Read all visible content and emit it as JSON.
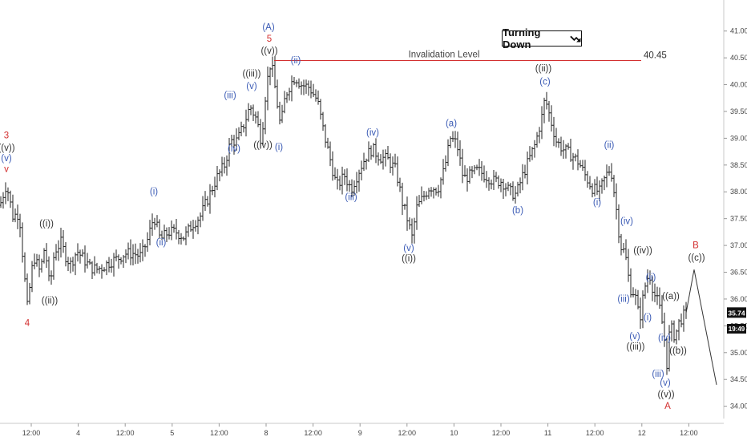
{
  "chart_data": {
    "type": "ohlc",
    "y_ticks": [
      34.0,
      34.5,
      35.0,
      35.5,
      36.0,
      36.5,
      37.0,
      37.5,
      38.0,
      38.5,
      39.0,
      39.5,
      40.0,
      40.5,
      41.0
    ],
    "ylim": [
      33.8,
      41.25
    ],
    "x_ticks": [
      "12:00",
      "4",
      "12:00",
      "5",
      "12:00",
      "8",
      "12:00",
      "9",
      "12:00",
      "10",
      "12:00",
      "11",
      "12:00",
      "12",
      "12:00"
    ],
    "invalidation": {
      "label": "Invalidation Level",
      "value": "40.45",
      "level": 40.45,
      "color": "#d32f2f"
    },
    "last_price": "35.74",
    "countdown": "19:49",
    "badge": {
      "text": "Turning Down"
    },
    "path": [
      [
        0,
        37.75
      ],
      [
        8,
        38.15
      ],
      [
        16,
        37.55
      ],
      [
        24,
        37.6
      ],
      [
        30,
        36.5
      ],
      [
        34,
        35.85
      ],
      [
        42,
        36.8
      ],
      [
        50,
        36.5
      ],
      [
        56,
        37.0
      ],
      [
        62,
        36.2
      ],
      [
        68,
        36.9
      ],
      [
        76,
        37.05
      ],
      [
        82,
        36.8
      ],
      [
        88,
        36.65
      ],
      [
        96,
        36.9
      ],
      [
        104,
        36.75
      ],
      [
        112,
        36.6
      ],
      [
        120,
        36.55
      ],
      [
        128,
        36.6
      ],
      [
        138,
        36.7
      ],
      [
        146,
        36.75
      ],
      [
        156,
        36.85
      ],
      [
        166,
        36.85
      ],
      [
        176,
        36.8
      ],
      [
        184,
        37.1
      ],
      [
        192,
        37.55
      ],
      [
        200,
        37.1
      ],
      [
        210,
        37.25
      ],
      [
        220,
        37.25
      ],
      [
        230,
        37.15
      ],
      [
        240,
        37.4
      ],
      [
        250,
        37.55
      ],
      [
        260,
        37.9
      ],
      [
        270,
        38.25
      ],
      [
        280,
        38.5
      ],
      [
        288,
        38.95
      ],
      [
        296,
        38.95
      ],
      [
        304,
        39.25
      ],
      [
        312,
        39.6
      ],
      [
        320,
        39.35
      ],
      [
        326,
        38.95
      ],
      [
        332,
        39.95
      ],
      [
        338,
        40.45
      ],
      [
        344,
        39.85
      ],
      [
        350,
        39.2
      ],
      [
        356,
        39.8
      ],
      [
        362,
        40.0
      ],
      [
        368,
        40.15
      ],
      [
        376,
        40.0
      ],
      [
        386,
        39.95
      ],
      [
        396,
        39.7
      ],
      [
        404,
        39.1
      ],
      [
        412,
        38.6
      ],
      [
        420,
        38.1
      ],
      [
        430,
        38.3
      ],
      [
        438,
        38.05
      ],
      [
        448,
        38.4
      ],
      [
        456,
        38.65
      ],
      [
        464,
        38.8
      ],
      [
        474,
        38.65
      ],
      [
        484,
        38.6
      ],
      [
        494,
        38.4
      ],
      [
        502,
        37.8
      ],
      [
        508,
        37.5
      ],
      [
        514,
        37.15
      ],
      [
        520,
        37.7
      ],
      [
        528,
        37.9
      ],
      [
        536,
        38.1
      ],
      [
        546,
        38.05
      ],
      [
        554,
        38.4
      ],
      [
        562,
        39.0
      ],
      [
        570,
        38.9
      ],
      [
        578,
        38.25
      ],
      [
        586,
        38.3
      ],
      [
        596,
        38.4
      ],
      [
        606,
        38.3
      ],
      [
        616,
        38.2
      ],
      [
        626,
        38.2
      ],
      [
        636,
        38.0
      ],
      [
        644,
        37.95
      ],
      [
        652,
        38.3
      ],
      [
        660,
        38.6
      ],
      [
        668,
        38.9
      ],
      [
        676,
        39.4
      ],
      [
        680,
        39.75
      ],
      [
        686,
        39.4
      ],
      [
        694,
        38.95
      ],
      [
        702,
        38.8
      ],
      [
        712,
        38.7
      ],
      [
        722,
        38.55
      ],
      [
        732,
        38.25
      ],
      [
        740,
        38.05
      ],
      [
        748,
        38.0
      ],
      [
        756,
        38.3
      ],
      [
        762,
        38.45
      ],
      [
        768,
        37.8
      ],
      [
        774,
        37.0
      ],
      [
        780,
        36.85
      ],
      [
        786,
        36.2
      ],
      [
        792,
        36.1
      ],
      [
        798,
        35.6
      ],
      [
        804,
        36.2
      ],
      [
        810,
        36.5
      ],
      [
        816,
        36.1
      ],
      [
        822,
        35.9
      ],
      [
        828,
        35.4
      ],
      [
        832,
        34.8
      ],
      [
        836,
        35.5
      ],
      [
        842,
        35.3
      ],
      [
        848,
        35.6
      ],
      [
        856,
        35.74
      ]
    ],
    "projection": [
      [
        856,
        35.74
      ],
      [
        866,
        36.55
      ],
      [
        894,
        34.4
      ]
    ],
    "labels": [
      {
        "text": "3",
        "x": 8,
        "y": 39.0,
        "color": "red"
      },
      {
        "text": "((v))",
        "x": 8,
        "y": 38.77,
        "color": "black"
      },
      {
        "text": "(v)",
        "x": 8,
        "y": 38.57,
        "color": "blue"
      },
      {
        "text": "v",
        "x": 8,
        "y": 38.37,
        "color": "red"
      },
      {
        "text": "4",
        "x": 34,
        "y": 35.5,
        "color": "red"
      },
      {
        "text": "((i))",
        "x": 58,
        "y": 37.35,
        "color": "black"
      },
      {
        "text": "((ii))",
        "x": 62,
        "y": 35.92,
        "color": "black"
      },
      {
        "text": "(i)",
        "x": 192,
        "y": 37.95,
        "color": "blue"
      },
      {
        "text": "(ii)",
        "x": 201,
        "y": 37.0,
        "color": "blue"
      },
      {
        "text": "(iii)",
        "x": 287,
        "y": 39.75,
        "color": "blue"
      },
      {
        "text": "(iv)",
        "x": 292,
        "y": 38.75,
        "color": "blue"
      },
      {
        "text": "((iii))",
        "x": 314,
        "y": 40.15,
        "color": "black"
      },
      {
        "text": "(v)",
        "x": 314,
        "y": 39.92,
        "color": "blue"
      },
      {
        "text": "((iv))",
        "x": 328,
        "y": 38.82,
        "color": "black"
      },
      {
        "text": "(A)",
        "x": 335,
        "y": 41.02,
        "color": "blue"
      },
      {
        "text": "5",
        "x": 336,
        "y": 40.8,
        "color": "red"
      },
      {
        "text": "((v))",
        "x": 336,
        "y": 40.58,
        "color": "black"
      },
      {
        "text": "(ii)",
        "x": 369,
        "y": 40.4,
        "color": "blue"
      },
      {
        "text": "(i)",
        "x": 348,
        "y": 38.78,
        "color": "blue"
      },
      {
        "text": "(iii)",
        "x": 438,
        "y": 37.85,
        "color": "blue"
      },
      {
        "text": "(iv)",
        "x": 465,
        "y": 39.05,
        "color": "blue"
      },
      {
        "text": "(v)",
        "x": 510,
        "y": 36.9,
        "color": "blue"
      },
      {
        "text": "((i))",
        "x": 510,
        "y": 36.7,
        "color": "black"
      },
      {
        "text": "(a)",
        "x": 563,
        "y": 39.22,
        "color": "blue"
      },
      {
        "text": "(b)",
        "x": 646,
        "y": 37.6,
        "color": "blue"
      },
      {
        "text": "((ii))",
        "x": 678,
        "y": 40.25,
        "color": "black"
      },
      {
        "text": "(c)",
        "x": 680,
        "y": 40.0,
        "color": "blue"
      },
      {
        "text": "(ii)",
        "x": 760,
        "y": 38.82,
        "color": "blue"
      },
      {
        "text": "(i)",
        "x": 745,
        "y": 37.75,
        "color": "blue"
      },
      {
        "text": "(iv)",
        "x": 782,
        "y": 37.4,
        "color": "blue"
      },
      {
        "text": "((iv))",
        "x": 802,
        "y": 36.85,
        "color": "black"
      },
      {
        "text": "(ii)",
        "x": 812,
        "y": 36.35,
        "color": "blue"
      },
      {
        "text": "(iii)",
        "x": 778,
        "y": 35.95,
        "color": "blue"
      },
      {
        "text": "(i)",
        "x": 808,
        "y": 35.6,
        "color": "blue"
      },
      {
        "text": "(v)",
        "x": 792,
        "y": 35.25,
        "color": "blue"
      },
      {
        "text": "((iii))",
        "x": 793,
        "y": 35.06,
        "color": "black"
      },
      {
        "text": "((a))",
        "x": 837,
        "y": 36.0,
        "color": "black"
      },
      {
        "text": "(iv)",
        "x": 829,
        "y": 35.22,
        "color": "blue"
      },
      {
        "text": "((b))",
        "x": 846,
        "y": 34.98,
        "color": "black"
      },
      {
        "text": "(iii)",
        "x": 821,
        "y": 34.55,
        "color": "blue"
      },
      {
        "text": "(v)",
        "x": 830,
        "y": 34.38,
        "color": "blue"
      },
      {
        "text": "((v))",
        "x": 831,
        "y": 34.17,
        "color": "black"
      },
      {
        "text": "A",
        "x": 833,
        "y": 33.95,
        "color": "red"
      },
      {
        "text": "B",
        "x": 868,
        "y": 36.95,
        "color": "red"
      },
      {
        "text": "((c))",
        "x": 869,
        "y": 36.72,
        "color": "black"
      }
    ]
  }
}
